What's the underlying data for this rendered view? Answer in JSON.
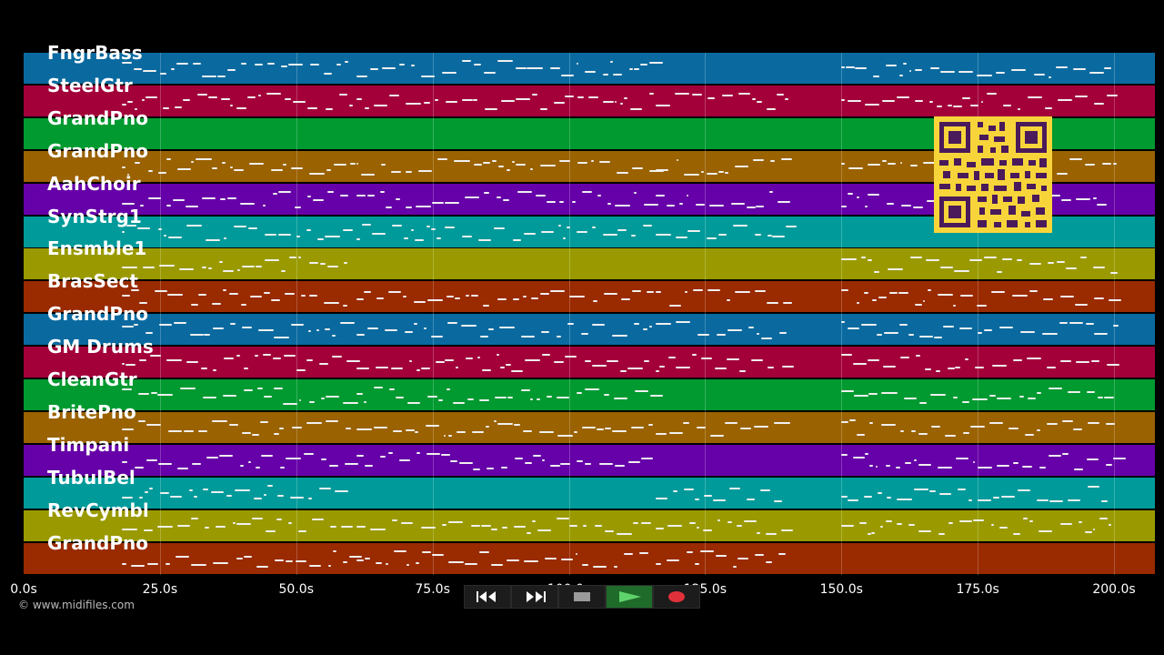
{
  "tracks": [
    {
      "label": "FngrBass",
      "color": "#0a6aa0"
    },
    {
      "label": "SteelGtr",
      "color": "#a3003a"
    },
    {
      "label": "GrandPno",
      "color": "#009a30"
    },
    {
      "label": "GrandPno",
      "color": "#9a6200"
    },
    {
      "label": "AahChoir",
      "color": "#6600a8"
    },
    {
      "label": "SynStrg1",
      "color": "#009a9a"
    },
    {
      "label": "Ensmble1",
      "color": "#9a9a00"
    },
    {
      "label": "BrasSect",
      "color": "#9a2a00"
    },
    {
      "label": "GrandPno",
      "color": "#0a6aa0"
    },
    {
      "label": "GM Drums",
      "color": "#a3003a"
    },
    {
      "label": "CleanGtr",
      "color": "#009a30"
    },
    {
      "label": "BritePno",
      "color": "#9a6200"
    },
    {
      "label": "Timpani",
      "color": "#6600a8"
    },
    {
      "label": "TubulBel",
      "color": "#009a9a"
    },
    {
      "label": "RevCymbl",
      "color": "#9a9a00"
    },
    {
      "label": "GrandPno",
      "color": "#9a2a00"
    }
  ],
  "time_axis": {
    "ticks": [
      "0.0s",
      "25.0s",
      "50.0s",
      "75.0s",
      "100.0s",
      "125.0s",
      "150.0s",
      "175.0s",
      "200.0s"
    ],
    "max_seconds": 207.5
  },
  "copyright": "© www.midifiles.com",
  "controls": {
    "rewind_icon": "rewind-icon",
    "forward_icon": "fast-forward-icon",
    "stop_icon": "stop-icon",
    "play_icon": "play-icon",
    "record_icon": "record-icon"
  },
  "qr_code": "qr-code"
}
